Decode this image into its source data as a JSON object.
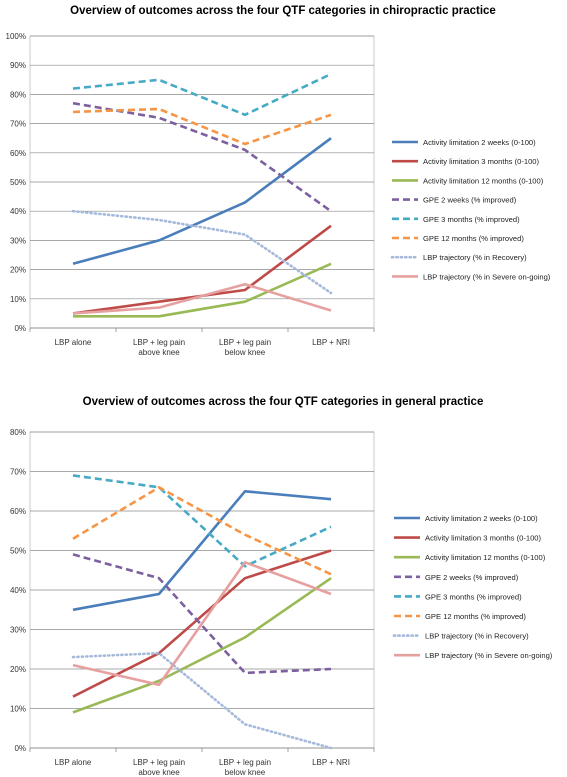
{
  "series_styles": [
    {
      "color": "#4a7ebb",
      "dash": "solid"
    },
    {
      "color": "#be4b48",
      "dash": "solid"
    },
    {
      "color": "#98b954",
      "dash": "solid"
    },
    {
      "color": "#7d60a0",
      "dash": "dash"
    },
    {
      "color": "#46aac5",
      "dash": "dash"
    },
    {
      "color": "#f69546",
      "dash": "dash"
    },
    {
      "color": "#a5b9db",
      "dash": "dot"
    },
    {
      "color": "#e6a09f",
      "dash": "solid"
    }
  ],
  "chart_data": [
    {
      "type": "line",
      "title": "Overview of outcomes across the four QTF categories in chiropractic practice",
      "categories": [
        "LBP alone",
        "LBP + leg pain above knee",
        "LBP + leg pain below knee",
        "LBP + NRI"
      ],
      "y_ticks": [
        "0%",
        "10%",
        "20%",
        "30%",
        "40%",
        "50%",
        "60%",
        "70%",
        "80%",
        "90%",
        "100%"
      ],
      "ylim": [
        0,
        100
      ],
      "grid": true,
      "legend_position": "right",
      "series": [
        {
          "name": "Activity limitation 2 weeks (0-100)",
          "values": [
            22,
            30,
            43,
            65
          ]
        },
        {
          "name": "Activity limitation 3 months (0-100)",
          "values": [
            5,
            9,
            13,
            35
          ]
        },
        {
          "name": "Activity limitation 12 months (0-100)",
          "values": [
            4,
            4,
            9,
            22
          ]
        },
        {
          "name": "GPE 2 weeks (% improved)",
          "values": [
            77,
            72,
            61,
            40
          ]
        },
        {
          "name": "GPE 3 months (% improved)",
          "values": [
            82,
            85,
            73,
            87
          ]
        },
        {
          "name": "GPE 12 months (% improved)",
          "values": [
            74,
            75,
            63,
            73
          ]
        },
        {
          "name": "LBP trajectory (% in Recovery)",
          "values": [
            40,
            37,
            32,
            12
          ]
        },
        {
          "name": "LBP trajectory (% in Severe on-going)",
          "values": [
            5,
            7,
            15,
            6
          ]
        }
      ]
    },
    {
      "type": "line",
      "title": "Overview of outcomes across the four QTF categories in general practice",
      "categories": [
        "LBP alone",
        "LBP + leg pain above knee",
        "LBP + leg pain below knee",
        "LBP + NRI"
      ],
      "y_ticks": [
        "0%",
        "10%",
        "20%",
        "30%",
        "40%",
        "50%",
        "60%",
        "70%",
        "80%"
      ],
      "ylim": [
        0,
        80
      ],
      "grid": true,
      "legend_position": "right",
      "series": [
        {
          "name": "Activity limitation 2 weeks (0-100)",
          "values": [
            35,
            39,
            65,
            63
          ]
        },
        {
          "name": "Activity limitation 3 months (0-100)",
          "values": [
            13,
            24,
            43,
            50
          ]
        },
        {
          "name": "Activity limitation 12 months (0-100)",
          "values": [
            9,
            17,
            28,
            43
          ]
        },
        {
          "name": "GPE 2 weeks (% improved)",
          "values": [
            49,
            43,
            19,
            20
          ]
        },
        {
          "name": "GPE 3 months (% improved)",
          "values": [
            69,
            66,
            46,
            56
          ]
        },
        {
          "name": "GPE 12 months (% improved)",
          "values": [
            53,
            66,
            54,
            44
          ]
        },
        {
          "name": "LBP trajectory (% in Recovery)",
          "values": [
            23,
            24,
            6,
            0
          ]
        },
        {
          "name": "LBP trajectory (% in Severe on-going)",
          "values": [
            21,
            16,
            47,
            39
          ]
        }
      ]
    }
  ]
}
